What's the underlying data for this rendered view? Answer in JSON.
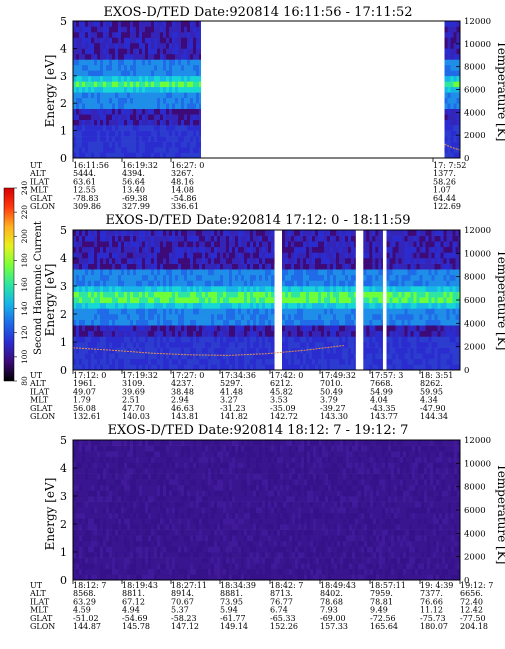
{
  "chart_data": [
    {
      "type": "heatmap",
      "title": "EXOS-D/TED   Date:920814   16:11:56 - 17:11:52",
      "ylabel": "Energy [eV]",
      "y2label": "Temperature [K]",
      "ylim": [
        0,
        5
      ],
      "y2lim": [
        0,
        12000
      ],
      "yticks": [
        "0",
        "1",
        "2",
        "3",
        "4",
        "5"
      ],
      "y2ticks": [
        "0",
        "2000",
        "4000",
        "6000",
        "8000",
        "10000",
        "12000"
      ],
      "data_segments": [
        [
          0.0,
          0.33
        ],
        [
          0.96,
          1.0
        ]
      ],
      "band_energy_ev": 2.7,
      "temperature_curve": [
        [
          0.96,
          1200
        ],
        [
          0.98,
          900
        ],
        [
          1.0,
          700
        ]
      ],
      "rows": [
        {
          "label": "UT",
          "values": [
            "16:11:56",
            "16:19:32",
            "16:27: 0",
            "",
            "",
            "",
            "",
            "17: 7:52"
          ]
        },
        {
          "label": "ALT",
          "values": [
            "5444.",
            "4394.",
            "3267.",
            "",
            "",
            "",
            "",
            "1377."
          ]
        },
        {
          "label": "ILAT",
          "values": [
            "63.61",
            "56.64",
            "48.16",
            "",
            "",
            "",
            "",
            "58.26"
          ]
        },
        {
          "label": "MLT",
          "values": [
            "12.55",
            "13.40",
            "14.08",
            "",
            "",
            "",
            "",
            "1.07"
          ]
        },
        {
          "label": "GLAT",
          "values": [
            "-78.83",
            "-69.38",
            "-54.86",
            "",
            "",
            "",
            "",
            "64.44"
          ]
        },
        {
          "label": "GLON",
          "values": [
            "309.86",
            "327.99",
            "336.61",
            "",
            "",
            "",
            "",
            "122.69"
          ]
        }
      ]
    },
    {
      "type": "heatmap",
      "title": "EXOS-D/TED   Date:920814   17:12: 0 - 18:11:59",
      "ylabel": "Energy [eV]",
      "y2label": "Temperature [K]",
      "ylim": [
        0,
        5
      ],
      "y2lim": [
        0,
        12000
      ],
      "yticks": [
        "0",
        "1",
        "2",
        "3",
        "4",
        "5"
      ],
      "y2ticks": [
        "0",
        "2000",
        "4000",
        "6000",
        "8000",
        "10000",
        "12000"
      ],
      "data_segments": [
        [
          0.0,
          0.52
        ],
        [
          0.54,
          0.73
        ],
        [
          0.75,
          0.8
        ],
        [
          0.81,
          1.0
        ]
      ],
      "band_energy_ev": 2.6,
      "temperature_curve": [
        [
          0.0,
          1900
        ],
        [
          0.1,
          1700
        ],
        [
          0.2,
          1450
        ],
        [
          0.3,
          1300
        ],
        [
          0.4,
          1250
        ],
        [
          0.5,
          1400
        ],
        [
          0.6,
          1700
        ],
        [
          0.7,
          2100
        ]
      ],
      "rows": [
        {
          "label": "UT",
          "values": [
            "17:12: 0",
            "17:19:32",
            "17:27: 0",
            "17:34:36",
            "17:42: 0",
            "17:49:32",
            "17:57: 3",
            "18: 3:51"
          ]
        },
        {
          "label": "ALT",
          "values": [
            "1961.",
            "3109.",
            "4237.",
            "5297.",
            "6212.",
            "7010.",
            "7668.",
            "8262."
          ]
        },
        {
          "label": "ILAT",
          "values": [
            "49.07",
            "39.69",
            "38.48",
            "41.48",
            "45.82",
            "50.49",
            "54.99",
            "59.95"
          ]
        },
        {
          "label": "MLT",
          "values": [
            "1.79",
            "2.51",
            "2.94",
            "3.27",
            "3.53",
            "3.79",
            "4.04",
            "4.34"
          ]
        },
        {
          "label": "GLAT",
          "values": [
            "56.08",
            "47.70",
            "46.63",
            "-31.23",
            "-35.09",
            "-39.27",
            "-43.35",
            "-47.90"
          ]
        },
        {
          "label": "GLON",
          "values": [
            "132.61",
            "140.03",
            "143.81",
            "141.82",
            "142.72",
            "143.30",
            "143.77",
            "144.34"
          ]
        }
      ]
    },
    {
      "type": "heatmap",
      "title": "EXOS-D/TED   Date:920814   18:12: 7 - 19:12: 7",
      "ylabel": "Energy [eV]",
      "y2label": "Temperature [K]",
      "ylim": [
        0,
        5
      ],
      "y2lim": [
        0,
        12000
      ],
      "yticks": [
        "0",
        "1",
        "2",
        "3",
        "4",
        "5"
      ],
      "y2ticks": [
        "0",
        "2000",
        "4000",
        "6000",
        "8000",
        "10000",
        "12000"
      ],
      "data_segments": [
        [
          0.0,
          1.0
        ]
      ],
      "band_energy_ev": null,
      "temperature_curve": [],
      "rows": [
        {
          "label": "UT",
          "values": [
            "18:12: 7",
            "18:19:43",
            "18:27:11",
            "18:34:39",
            "18:42: 7",
            "18:49:43",
            "18:57:11",
            "19: 4:39",
            "19:12: 7"
          ]
        },
        {
          "label": "ALT",
          "values": [
            "8568.",
            "8811.",
            "8914.",
            "8881.",
            "8713.",
            "8402.",
            "7959.",
            "7377.",
            "6656."
          ]
        },
        {
          "label": "ILAT",
          "values": [
            "63.29",
            "67.12",
            "70.67",
            "73.95",
            "76.77",
            "78.68",
            "78.81",
            "76.66",
            "72.40"
          ]
        },
        {
          "label": "MLT",
          "values": [
            "4.59",
            "4.94",
            "5.37",
            "5.94",
            "6.74",
            "7.93",
            "9.49",
            "11.12",
            "12.42"
          ]
        },
        {
          "label": "GLAT",
          "values": [
            "-51.02",
            "-54.69",
            "-58.23",
            "-61.77",
            "-65.33",
            "-69.00",
            "-72.56",
            "-75.73",
            "-77.50"
          ]
        },
        {
          "label": "GLON",
          "values": [
            "144.87",
            "145.78",
            "147.12",
            "149.14",
            "152.26",
            "157.33",
            "165.64",
            "180.07",
            "204.18"
          ]
        }
      ]
    }
  ],
  "colorbar": {
    "label": "Second Harmonic Current",
    "ticks": [
      "80",
      "100",
      "120",
      "140",
      "160",
      "180",
      "200",
      "220",
      "240"
    ],
    "colors": [
      "#000000",
      "#3d0a78",
      "#2b2ccf",
      "#1f6be8",
      "#17b5e8",
      "#2ee6a0",
      "#7aff3a",
      "#e8f020",
      "#ffb020",
      "#ff3a10",
      "#d40000"
    ]
  }
}
